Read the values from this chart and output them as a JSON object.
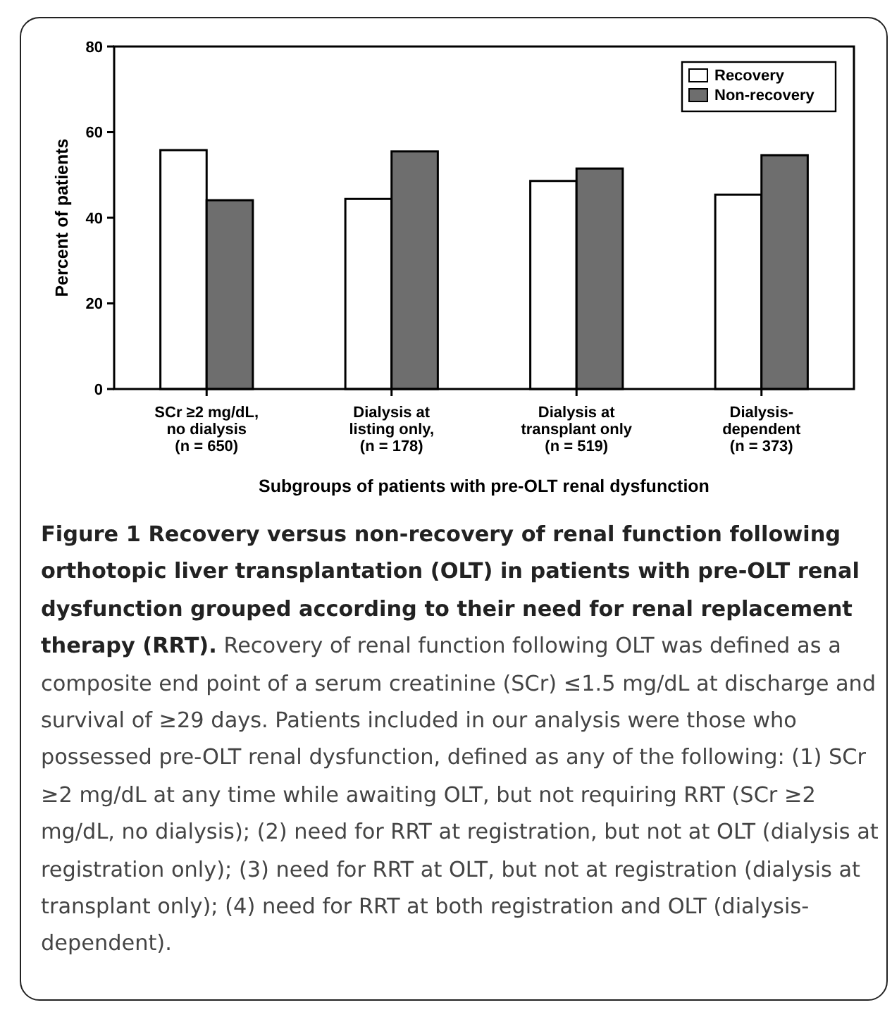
{
  "chart_data": {
    "type": "bar",
    "categories": [
      "SCr ≥2 mg/dL,\nno dialysis\n(n = 650)",
      "Dialysis at\nlisting only,\n(n = 178)",
      "Dialysis at\ntransplant only\n(n = 519)",
      "Dialysis-\ndependent\n(n = 373)"
    ],
    "series": [
      {
        "name": "Recovery",
        "color": "#ffffff",
        "values": [
          55.8,
          44.4,
          48.6,
          45.4
        ]
      },
      {
        "name": "Non-recovery",
        "color": "#6e6e6e",
        "values": [
          44.1,
          55.5,
          51.5,
          54.6
        ]
      }
    ],
    "ylim": [
      0,
      80
    ],
    "yticks": [
      0,
      20,
      40,
      60,
      80
    ],
    "grid": false,
    "legend": "top right",
    "xlabel": "Subgroups of patients with pre-OLT renal dysfunction",
    "ylabel": "Percent of patients",
    "annotations": [
      "Figure 1 Recovery versus non-recovery of renal function following orthotopic liver transplantation (OLT) in patients with pre-OLT renal dysfunction grouped according to their need for renal replacement therapy (RRT).",
      "Recovery of renal function following OLT was defined as a composite end point of a serum creatinine (SCr) ≤1.5 mg/dL at discharge and survival of ≥29 days. Patients included in our analysis were those who possessed pre-OLT renal dysfunction, defined as any of the following: (1) SCr ≥2 mg/dL at any time while awaiting OLT, but not requiring RRT (SCr ≥2 mg/dL, no dialysis); (2) need for RRT at registration, but not at OLT (dialysis at registration only); (3) need for RRT at OLT, but not at registration (dialysis at transplant only); (4) need for RRT at both registration and OLT (dialysis-dependent)."
    ]
  }
}
